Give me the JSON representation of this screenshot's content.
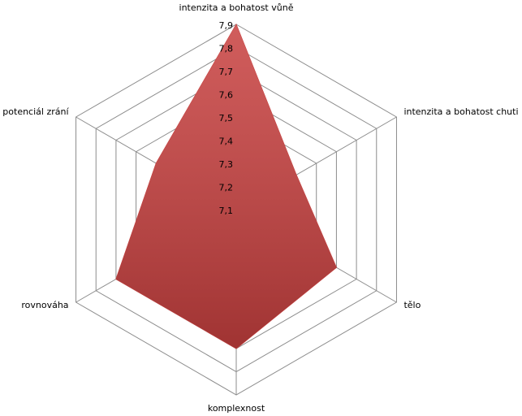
{
  "chart_data": {
    "type": "radar",
    "categories": [
      "intenzita a bohatost vůně",
      "intenzita a bohatost chuti",
      "tělo",
      "komplexnost",
      "rovnováha",
      "potenciál zrání"
    ],
    "values": [
      7.9,
      7.4,
      7.6,
      7.7,
      7.7,
      7.5
    ],
    "color": "#c8403f",
    "rlim": [
      7.1,
      7.9
    ],
    "rticks": [
      {
        "value": 7.1,
        "label": "7,1"
      },
      {
        "value": 7.2,
        "label": "7,2"
      },
      {
        "value": 7.3,
        "label": "7,3"
      },
      {
        "value": 7.4,
        "label": "7,4"
      },
      {
        "value": 7.5,
        "label": "7,5"
      },
      {
        "value": 7.6,
        "label": "7,6"
      },
      {
        "value": 7.7,
        "label": "7,7"
      },
      {
        "value": 7.8,
        "label": "7,8"
      },
      {
        "value": 7.9,
        "label": "7,9"
      }
    ],
    "grid": true
  }
}
